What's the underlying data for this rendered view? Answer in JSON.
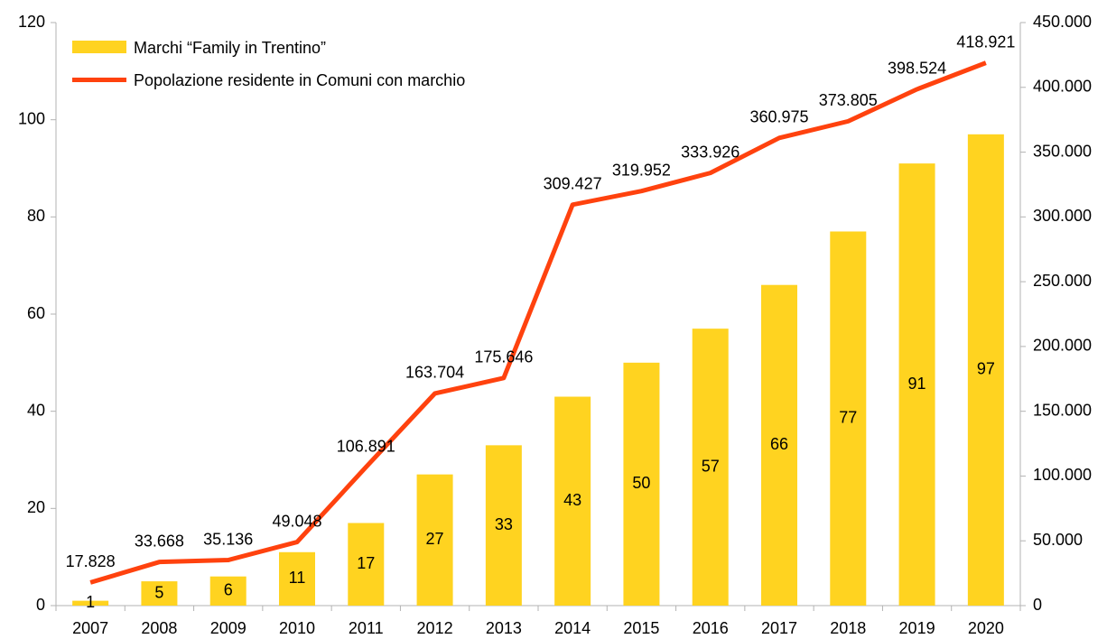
{
  "chart_data": {
    "type": "bar",
    "categories": [
      "2007",
      "2008",
      "2009",
      "2010",
      "2011",
      "2012",
      "2013",
      "2014",
      "2015",
      "2016",
      "2017",
      "2018",
      "2019",
      "2020"
    ],
    "series": [
      {
        "name": "Marchi “Family in Trentino”",
        "type": "bar",
        "color": "#ffd320",
        "axis": "y",
        "values": [
          1,
          5,
          6,
          11,
          17,
          27,
          33,
          43,
          50,
          57,
          66,
          77,
          91,
          97
        ]
      },
      {
        "name": "Popolazione residente in Comuni con marchio",
        "type": "line",
        "color": "#ff420e",
        "axis": "y2",
        "values": [
          17828,
          33668,
          35136,
          49048,
          106891,
          163704,
          175646,
          309427,
          319952,
          333926,
          360975,
          373805,
          398524,
          418921
        ],
        "value_labels": [
          "17.828",
          "33.668",
          "35.136",
          "49.048",
          "106.891",
          "163.704",
          "175.646",
          "309.427",
          "319.952",
          "333.926",
          "360.975",
          "373.805",
          "398.524",
          "418.921"
        ]
      }
    ],
    "ylim": [
      0,
      120
    ],
    "yticks": [
      0,
      20,
      40,
      60,
      80,
      100,
      120
    ],
    "y2lim": [
      0,
      450000
    ],
    "y2ticks": [
      0,
      {
        "value": 50000,
        "label": "50.000"
      },
      {
        "value": 100000,
        "label": "100.000"
      },
      {
        "value": 150000,
        "label": "150.000"
      },
      {
        "value": 200000,
        "label": "200.000"
      },
      {
        "value": 250000,
        "label": "250.000"
      },
      {
        "value": 300000,
        "label": "300.000"
      },
      {
        "value": 350000,
        "label": "350.000"
      },
      {
        "value": 400000,
        "label": "400.000"
      },
      {
        "value": 450000,
        "label": "450.000"
      }
    ],
    "grid": false,
    "legend": "top-left"
  }
}
